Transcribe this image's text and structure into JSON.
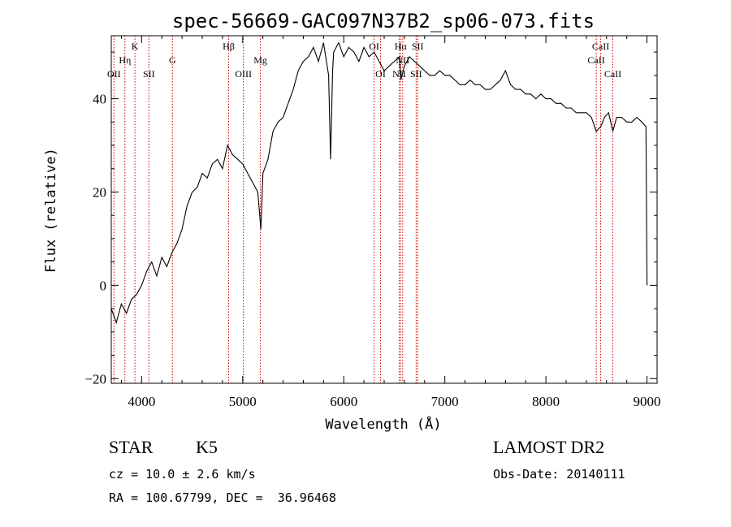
{
  "info": {
    "object_class": "STAR",
    "subclass": "K5",
    "survey": "LAMOST DR2",
    "redshift": "cz = 10.0 ± 2.6 km/s",
    "obs_date": "Obs-Date: 20140111",
    "coords": "RA = 100.67799, DEC =  36.96468"
  },
  "chart_data": {
    "type": "line",
    "title": "spec-56669-GAC097N37B2_sp06-073.fits",
    "xlabel": "Wavelength (Å)",
    "ylabel": "Flux (relative)",
    "xlim": [
      3700,
      9100
    ],
    "ylim": [
      -21,
      53.5
    ],
    "x_ticks": [
      4000,
      5000,
      6000,
      7000,
      8000,
      9000
    ],
    "y_ticks": [
      -20,
      0,
      20,
      40
    ],
    "series": [
      {
        "x": [
          3700,
          3750,
          3800,
          3850,
          3900,
          3950,
          4000,
          4050,
          4100,
          4150,
          4200,
          4250,
          4300,
          4350,
          4400,
          4450,
          4500,
          4550,
          4600,
          4650,
          4700,
          4750,
          4800,
          4850,
          4900,
          4950,
          5000,
          5050,
          5100,
          5150,
          5180,
          5200,
          5250,
          5300,
          5350,
          5400,
          5450,
          5500,
          5550,
          5600,
          5650,
          5700,
          5750,
          5800,
          5850,
          5870,
          5890,
          5900,
          5950,
          6000,
          6050,
          6100,
          6150,
          6200,
          6250,
          6300,
          6350,
          6400,
          6450,
          6500,
          6550,
          6565,
          6600,
          6650,
          6700,
          6750,
          6800,
          6850,
          6900,
          6950,
          7000,
          7050,
          7100,
          7150,
          7200,
          7250,
          7300,
          7350,
          7400,
          7450,
          7500,
          7550,
          7600,
          7650,
          7700,
          7750,
          7800,
          7850,
          7900,
          7950,
          8000,
          8050,
          8100,
          8150,
          8200,
          8250,
          8300,
          8350,
          8400,
          8450,
          8498,
          8542,
          8580,
          8620,
          8662,
          8700,
          8750,
          8800,
          8850,
          8900,
          8950,
          8990,
          9000
        ],
        "y": [
          -5,
          -8,
          -4,
          -6,
          -3,
          -2,
          0,
          3,
          5,
          2,
          6,
          4,
          7,
          9,
          12,
          17,
          20,
          21,
          24,
          23,
          26,
          27,
          25,
          30,
          28,
          27,
          26,
          24,
          22,
          20,
          12,
          24,
          27,
          33,
          35,
          36,
          39,
          42,
          46,
          48,
          49,
          51,
          48,
          52,
          45,
          27,
          46,
          50,
          52,
          49,
          51,
          50,
          48,
          51,
          49,
          50,
          48,
          46,
          47,
          48,
          49,
          44,
          47,
          49,
          48,
          47,
          46,
          45,
          45,
          46,
          45,
          45,
          44,
          43,
          43,
          44,
          43,
          43,
          42,
          42,
          43,
          44,
          46,
          43,
          42,
          42,
          41,
          41,
          40,
          41,
          40,
          40,
          39,
          39,
          38,
          38,
          37,
          37,
          37,
          36,
          33,
          34,
          36,
          37,
          33,
          36,
          36,
          35,
          35,
          36,
          35,
          34,
          0
        ]
      }
    ],
    "lines": [
      {
        "label": "OII",
        "wl": 3727,
        "row": 3
      },
      {
        "label": "Hη",
        "wl": 3835,
        "row": 2
      },
      {
        "label": "K",
        "wl": 3934,
        "row": 1
      },
      {
        "label": "SII",
        "wl": 4072,
        "row": 3
      },
      {
        "label": "G",
        "wl": 4305,
        "row": 2
      },
      {
        "label": "Hβ",
        "wl": 4861,
        "row": 1
      },
      {
        "label": "OIII",
        "wl": 5007,
        "row": 3
      },
      {
        "label": "Mg",
        "wl": 5175,
        "row": 2
      },
      {
        "label": "OI",
        "wl": 6300,
        "row": 1
      },
      {
        "label": "OI",
        "wl": 6364,
        "row": 3
      },
      {
        "label": "NII",
        "wl": 6548,
        "row": 3
      },
      {
        "label": "Hα",
        "wl": 6563,
        "row": 1
      },
      {
        "label": "NII",
        "wl": 6583,
        "row": 2
      },
      {
        "label": "SII",
        "wl": 6716,
        "row": 3
      },
      {
        "label": "SII",
        "wl": 6731,
        "row": 1
      },
      {
        "label": "CaII",
        "wl": 8498,
        "row": 2
      },
      {
        "label": "CaII",
        "wl": 8542,
        "row": 1
      },
      {
        "label": "CaII",
        "wl": 8662,
        "row": 3
      }
    ],
    "colors": {
      "line_marker": "#cc0000",
      "spectrum": "#000000"
    }
  }
}
